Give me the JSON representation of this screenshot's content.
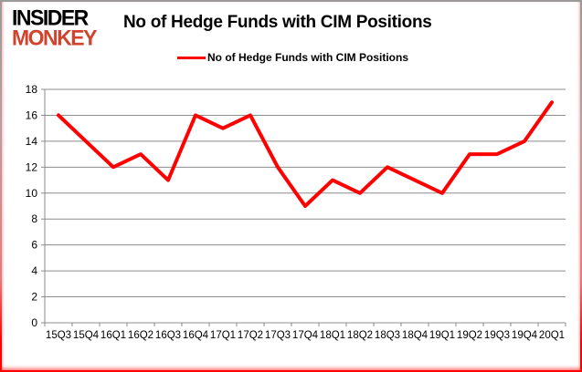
{
  "logo": {
    "line1": "INSIDER",
    "line2": "MONKEY",
    "line1_color": "#000000",
    "line2_color": "#d0442e"
  },
  "header": {
    "title": "No of Hedge Funds with CIM Positions"
  },
  "legend": {
    "label": "No of Hedge Funds with CIM Positions",
    "swatch_color": "#ff0000"
  },
  "chart_data": {
    "type": "line",
    "title": "No of Hedge Funds with CIM Positions",
    "categories": [
      "15Q3",
      "15Q4",
      "16Q1",
      "16Q2",
      "16Q3",
      "16Q4",
      "17Q1",
      "17Q2",
      "17Q3",
      "17Q4",
      "18Q1",
      "18Q2",
      "18Q3",
      "18Q4",
      "19Q1",
      "19Q2",
      "19Q3",
      "19Q4",
      "20Q1"
    ],
    "series": [
      {
        "name": "No of Hedge Funds with CIM Positions",
        "color": "#ff0000",
        "values": [
          16,
          14,
          12,
          13,
          11,
          16,
          15,
          16,
          12,
          9,
          11,
          10,
          12,
          11,
          10,
          13,
          13,
          14,
          17
        ]
      }
    ],
    "xlabel": "",
    "ylabel": "",
    "ylim": [
      0,
      18
    ],
    "ytick_step": 2,
    "yticks": [
      0,
      2,
      4,
      6,
      8,
      10,
      12,
      14,
      16,
      18
    ],
    "grid": "horizontal",
    "legend_position": "top-center",
    "axis_color": "#8c8c8c",
    "gridline_color": "#8c8c8c",
    "tick_label_color": "#000000"
  }
}
